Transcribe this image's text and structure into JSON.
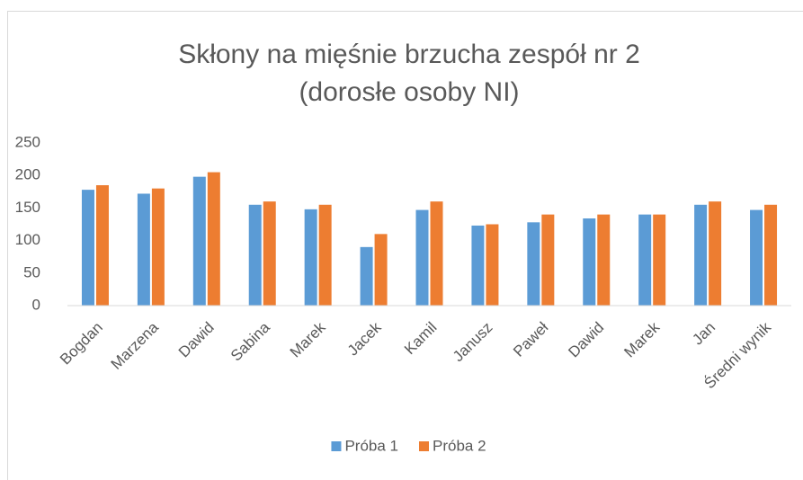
{
  "chart_data": {
    "type": "bar",
    "title": [
      "Skłony na mięśnie brzucha zespół nr 2",
      "(dorosłe osoby NI)"
    ],
    "categories": [
      "Bogdan",
      "Marzena",
      "Dawid",
      "Sabina",
      "Marek",
      "Jacek",
      "Kamil",
      "Janusz",
      "Paweł",
      "Dawid",
      "Marek",
      "Jan",
      "Średni wynik"
    ],
    "series": [
      {
        "name": "Próba 1",
        "color": "#5b9bd5",
        "values": [
          178,
          172,
          198,
          155,
          148,
          90,
          147,
          123,
          128,
          134,
          140,
          155,
          147
        ]
      },
      {
        "name": "Próba 2",
        "color": "#ed7d31",
        "values": [
          185,
          180,
          205,
          160,
          155,
          110,
          160,
          125,
          140,
          140,
          140,
          160,
          155
        ]
      }
    ],
    "ylim": [
      0,
      250
    ],
    "yticks": [
      0,
      50,
      100,
      150,
      200,
      250
    ],
    "grid": false,
    "legend": "bottom"
  }
}
